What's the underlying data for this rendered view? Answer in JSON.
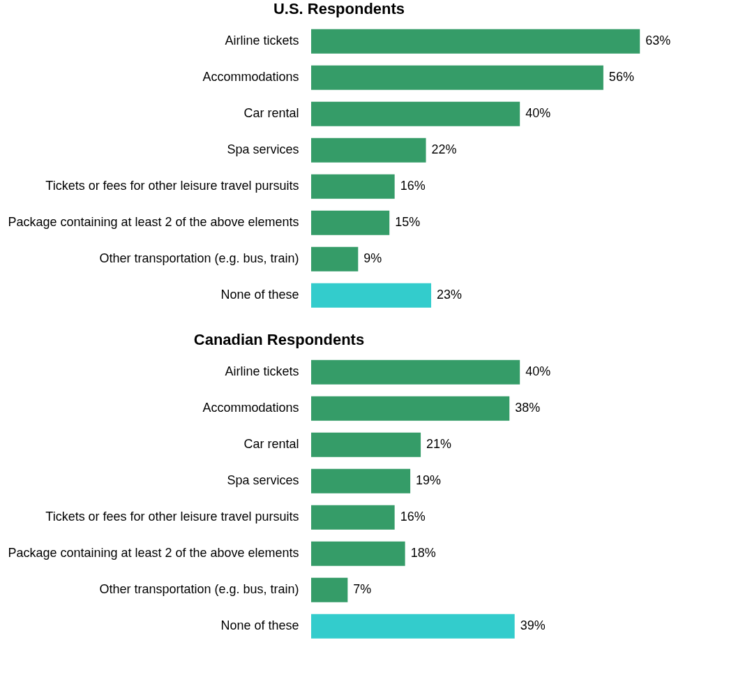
{
  "chart_data": [
    {
      "type": "bar",
      "orientation": "horizontal",
      "title": "U.S. Respondents",
      "categories": [
        "Airline tickets",
        "Accommodations",
        "Car rental",
        "Spa services",
        "Tickets or fees for other leisure travel pursuits",
        "Package containing at least 2 of the above elements",
        "Other transportation (e.g. bus, train)",
        "None of these"
      ],
      "values": [
        63,
        56,
        40,
        22,
        16,
        15,
        9,
        23
      ],
      "colors": [
        "#359c68",
        "#359c68",
        "#359c68",
        "#359c68",
        "#359c68",
        "#359c68",
        "#359c68",
        "#33cccc"
      ],
      "value_labels": [
        "63%",
        "56%",
        "40%",
        "22%",
        "16%",
        "15%",
        "9%",
        "23%"
      ]
    },
    {
      "type": "bar",
      "orientation": "horizontal",
      "title": "Canadian Respondents",
      "categories": [
        "Airline tickets",
        "Accommodations",
        "Car rental",
        "Spa services",
        "Tickets or fees for other leisure travel pursuits",
        "Package containing at least 2 of the above elements",
        "Other transportation (e.g. bus, train)",
        "None of these"
      ],
      "values": [
        40,
        38,
        21,
        19,
        16,
        18,
        7,
        39
      ],
      "colors": [
        "#359c68",
        "#359c68",
        "#359c68",
        "#359c68",
        "#359c68",
        "#359c68",
        "#359c68",
        "#33cccc"
      ],
      "value_labels": [
        "40%",
        "38%",
        "21%",
        "19%",
        "16%",
        "18%",
        "7%",
        "39%"
      ]
    }
  ]
}
